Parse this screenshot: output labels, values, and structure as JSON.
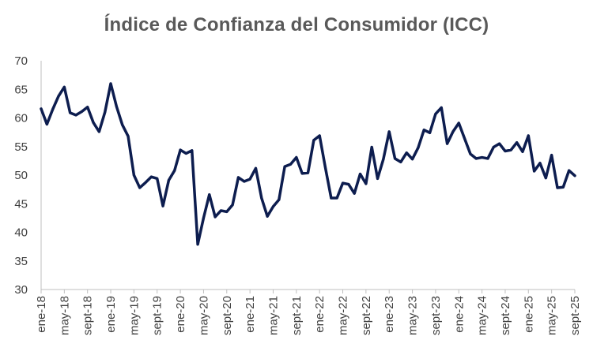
{
  "chart_data": {
    "type": "line",
    "title": "Índice de Confianza del Consumidor (ICC)",
    "xlabel": "",
    "ylabel": "",
    "ylim": [
      30,
      70
    ],
    "yticks": [
      30,
      35,
      40,
      45,
      50,
      55,
      60,
      65,
      70
    ],
    "grid": false,
    "legend": "none",
    "line_color": "#0d1d4f",
    "axis_color": "#bfbfbf",
    "text_color": "#404040",
    "title_color": "#595959",
    "x": [
      "ene-18",
      "feb-18",
      "mar-18",
      "abr-18",
      "may-18",
      "jun-18",
      "jul-18",
      "ago-18",
      "sept-18",
      "oct-18",
      "nov-18",
      "dic-18",
      "ene-19",
      "feb-19",
      "mar-19",
      "abr-19",
      "may-19",
      "jun-19",
      "jul-19",
      "ago-19",
      "sept-19",
      "oct-19",
      "nov-19",
      "dic-19",
      "ene-20",
      "feb-20",
      "mar-20",
      "abr-20",
      "may-20",
      "jun-20",
      "jul-20",
      "ago-20",
      "sept-20",
      "oct-20",
      "nov-20",
      "dic-20",
      "ene-21",
      "feb-21",
      "mar-21",
      "abr-21",
      "may-21",
      "jun-21",
      "jul-21",
      "ago-21",
      "sept-21",
      "oct-21",
      "nov-21",
      "dic-21",
      "ene-22",
      "feb-22",
      "mar-22",
      "abr-22",
      "may-22",
      "jun-22",
      "jul-22",
      "ago-22",
      "sept-22",
      "oct-22",
      "nov-22",
      "dic-22",
      "ene-23",
      "feb-23",
      "mar-23",
      "abr-23",
      "may-23",
      "jun-23",
      "jul-23",
      "ago-23",
      "sept-23",
      "oct-23",
      "nov-23",
      "dic-23",
      "ene-24",
      "feb-24",
      "mar-24",
      "abr-24",
      "may-24",
      "jun-24",
      "jul-24",
      "ago-24",
      "sept-24",
      "oct-24",
      "nov-24",
      "dic-24",
      "ene-25",
      "feb-25",
      "mar-25",
      "abr-25",
      "may-25",
      "jun-25",
      "jul-25",
      "ago-25",
      "sept-25"
    ],
    "xtick_labels": [
      "ene-18",
      "may-18",
      "sept-18",
      "ene-19",
      "may-19",
      "sept-19",
      "ene-20",
      "may-20",
      "sept-20",
      "ene-21",
      "may-21",
      "sept-21",
      "ene-22",
      "may-22",
      "sept-22",
      "ene-23",
      "may-23",
      "sept-23",
      "ene-24",
      "may-24",
      "sept-24",
      "ene-25",
      "may-25",
      "sept-25"
    ],
    "series": [
      {
        "name": "ICC",
        "values": [
          61.6,
          58.9,
          61.5,
          63.8,
          65.4,
          60.9,
          60.5,
          61.1,
          61.9,
          59.2,
          57.6,
          61.0,
          66.0,
          62.0,
          58.8,
          56.8,
          50.0,
          47.8,
          48.7,
          49.7,
          49.4,
          44.6,
          49.1,
          50.8,
          54.4,
          53.8,
          54.3,
          37.9,
          42.5,
          46.6,
          42.7,
          43.8,
          43.6,
          44.8,
          49.6,
          48.9,
          49.3,
          51.2,
          46.0,
          42.8,
          44.5,
          45.7,
          51.5,
          51.9,
          53.1,
          50.3,
          50.4,
          56.1,
          56.9,
          51.3,
          46.0,
          46.0,
          48.6,
          48.4,
          46.8,
          50.2,
          48.5,
          54.9,
          49.4,
          52.8,
          57.6,
          52.9,
          52.3,
          53.9,
          52.8,
          54.8,
          57.9,
          57.4,
          60.7,
          61.8,
          55.5,
          57.6,
          59.1,
          56.4,
          53.7,
          52.9,
          53.1,
          52.9,
          54.9,
          55.5,
          54.2,
          54.4,
          55.7,
          54.1,
          56.9,
          50.7,
          52.1,
          49.5,
          53.5,
          47.8,
          47.9,
          50.8,
          49.9
        ]
      }
    ]
  }
}
